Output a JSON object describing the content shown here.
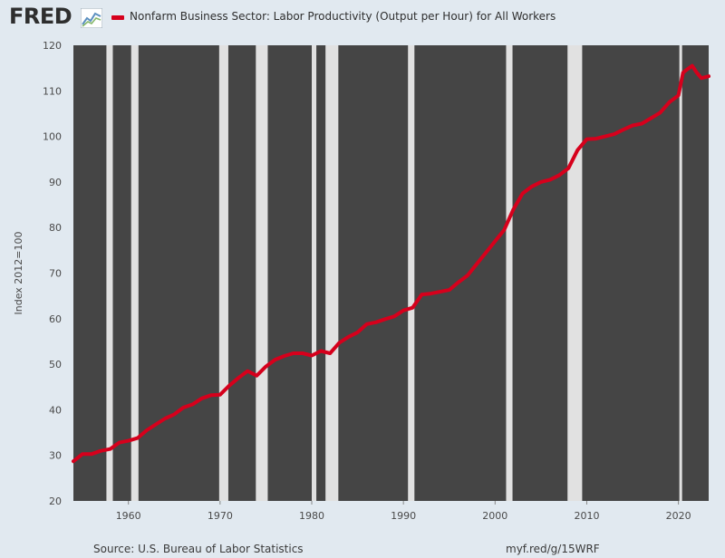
{
  "header": {
    "logo_text": "FRED",
    "logo_icon": "chart-line-icon",
    "legend_label": "Nonfarm Business Sector: Labor Productivity (Output per Hour) for All Workers"
  },
  "footer": {
    "source": "Source: U.S. Bureau of Labor Statistics",
    "link": "myf.red/g/15WRF"
  },
  "colors": {
    "plot_background": "#454545",
    "recession_band": "#e1e1e1",
    "series_line": "#d6001c",
    "page_background": "#e1e9f0"
  },
  "chart_data": {
    "type": "line",
    "ylabel": "Index 2012=100",
    "xlim": [
      1954.0,
      2023.3
    ],
    "ylim": [
      20,
      120
    ],
    "y_ticks": [
      20,
      30,
      40,
      50,
      60,
      70,
      80,
      90,
      100,
      110,
      120
    ],
    "x_ticks": [
      1960,
      1970,
      1980,
      1990,
      2000,
      2010,
      2020
    ],
    "grid": false,
    "legend": "top-left",
    "recessions": [
      [
        1957.6,
        1958.3
      ],
      [
        1960.3,
        1961.1
      ],
      [
        1969.9,
        1970.9
      ],
      [
        1973.9,
        1975.2
      ],
      [
        1980.0,
        1980.5
      ],
      [
        1981.5,
        1982.9
      ],
      [
        1990.5,
        1991.2
      ],
      [
        2001.2,
        2001.9
      ],
      [
        2007.9,
        2009.5
      ],
      [
        2020.1,
        2020.4
      ]
    ],
    "series": [
      {
        "x": [
          1954.0,
          1955.0,
          1956.0,
          1957.0,
          1958.0,
          1959.0,
          1960.0,
          1961.0,
          1962.0,
          1963.0,
          1964.0,
          1965.0,
          1966.0,
          1967.0,
          1968.0,
          1969.0,
          1970.0,
          1971.0,
          1972.0,
          1973.0,
          1974.0,
          1975.0,
          1976.0,
          1977.0,
          1978.0,
          1979.0,
          1980.0,
          1981.0,
          1982.0,
          1983.0,
          1984.0,
          1985.0,
          1986.0,
          1987.0,
          1988.0,
          1989.0,
          1990.0,
          1991.0,
          1992.0,
          1993.0,
          1994.0,
          1995.0,
          1996.0,
          1997.0,
          1998.0,
          1999.0,
          2000.0,
          2001.0,
          2002.0,
          2003.0,
          2004.0,
          2005.0,
          2006.0,
          2007.0,
          2008.0,
          2009.0,
          2010.0,
          2011.0,
          2012.0,
          2013.0,
          2014.0,
          2015.0,
          2016.0,
          2017.0,
          2018.0,
          2019.0,
          2020.0,
          2020.5,
          2021.0,
          2021.5,
          2022.0,
          2022.5,
          2023.3
        ],
        "y": [
          28.7,
          30.3,
          30.3,
          31.0,
          31.4,
          32.8,
          33.2,
          33.8,
          35.5,
          36.8,
          38.1,
          39.0,
          40.5,
          41.2,
          42.5,
          43.2,
          43.3,
          45.3,
          47.0,
          48.5,
          47.5,
          49.5,
          51.0,
          51.8,
          52.4,
          52.4,
          51.9,
          52.9,
          52.4,
          54.7,
          56.0,
          57.0,
          58.8,
          59.2,
          59.9,
          60.5,
          61.8,
          62.4,
          65.3,
          65.5,
          65.9,
          66.3,
          68.0,
          69.5,
          72.0,
          74.5,
          77.0,
          79.5,
          84.0,
          87.5,
          89.0,
          90.0,
          90.5,
          91.5,
          93.0,
          97.0,
          99.4,
          99.5,
          100.0,
          100.5,
          101.5,
          102.4,
          102.8,
          104.0,
          105.2,
          107.5,
          109.0,
          114.0,
          114.8,
          115.5,
          114.0,
          112.8,
          113.2
        ]
      }
    ]
  }
}
